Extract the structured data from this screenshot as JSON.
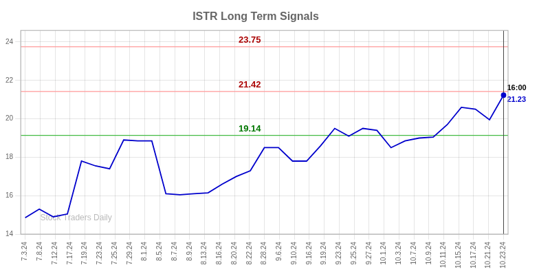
{
  "chart_data": {
    "type": "line",
    "title": "ISTR Long Term Signals",
    "watermark": "Stock Traders Daily",
    "x": [
      0,
      0.941176,
      1.882353,
      2.823529,
      3.764706,
      4.705882,
      5.647059,
      6.588235,
      7.529412,
      8.470588,
      9.411765,
      10.352941,
      11.294118,
      12.235294,
      13.176471,
      14.117647,
      15.058824,
      16,
      16.941176,
      17.882353,
      18.823529,
      19.764706,
      20.705882,
      21.647059,
      22.588235,
      23.529412,
      24.470588,
      25.411765,
      26.352941,
      27.294118,
      28.235294,
      29.176471,
      30.117647,
      31.058824,
      32
    ],
    "values": [
      14.85,
      15.3,
      14.9,
      15.05,
      17.8,
      17.55,
      17.4,
      18.9,
      18.85,
      18.85,
      16.1,
      16.05,
      16.1,
      16.15,
      16.6,
      17.0,
      17.3,
      18.5,
      18.5,
      17.8,
      17.8,
      18.6,
      19.5,
      19.1,
      19.5,
      19.4,
      18.5,
      18.85,
      19.0,
      19.05,
      19.7,
      20.6,
      20.5,
      19.95,
      21.23
    ],
    "color": "#0000cc",
    "xlim": [
      -0.3,
      32.3
    ],
    "xticks": [
      {
        "value": 0,
        "label": "7.3.24"
      },
      {
        "value": 1,
        "label": "7.8.24"
      },
      {
        "value": 2,
        "label": "7.12.24"
      },
      {
        "value": 3,
        "label": "7.17.24"
      },
      {
        "value": 4,
        "label": "7.19.24"
      },
      {
        "value": 5,
        "label": "7.23.24"
      },
      {
        "value": 6,
        "label": "7.25.24"
      },
      {
        "value": 7,
        "label": "7.29.24"
      },
      {
        "value": 8,
        "label": "8.1.24"
      },
      {
        "value": 9,
        "label": "8.5.24"
      },
      {
        "value": 10,
        "label": "8.7.24"
      },
      {
        "value": 11,
        "label": "8.9.24"
      },
      {
        "value": 12,
        "label": "8.13.24"
      },
      {
        "value": 13,
        "label": "8.16.24"
      },
      {
        "value": 14,
        "label": "8.20.24"
      },
      {
        "value": 15,
        "label": "8.22.24"
      },
      {
        "value": 16,
        "label": "8.28.24"
      },
      {
        "value": 17,
        "label": "9.6.24"
      },
      {
        "value": 18,
        "label": "9.10.24"
      },
      {
        "value": 19,
        "label": "9.16.24"
      },
      {
        "value": 20,
        "label": "9.19.24"
      },
      {
        "value": 21,
        "label": "9.23.24"
      },
      {
        "value": 22,
        "label": "9.25.24"
      },
      {
        "value": 23,
        "label": "9.27.24"
      },
      {
        "value": 24,
        "label": "10.1.24"
      },
      {
        "value": 25,
        "label": "10.3.24"
      },
      {
        "value": 26,
        "label": "10.7.24"
      },
      {
        "value": 27,
        "label": "10.9.24"
      },
      {
        "value": 28,
        "label": "10.11.24"
      },
      {
        "value": 29,
        "label": "10.15.24"
      },
      {
        "value": 30,
        "label": "10.17.24"
      },
      {
        "value": 31,
        "label": "10.21.24"
      },
      {
        "value": 32,
        "label": "10.23.24"
      }
    ],
    "ylim": [
      14,
      24.6
    ],
    "yticks": [
      14,
      16,
      18,
      20,
      22,
      24
    ],
    "grid": true,
    "annotations": [
      {
        "text": "23.75",
        "y": 23.75,
        "color": "#aa0000",
        "line_color": "#ff9999"
      },
      {
        "text": "21.42",
        "y": 21.42,
        "color": "#aa0000",
        "line_color": "#ff9999"
      },
      {
        "text": "19.14",
        "y": 19.14,
        "color": "#007700",
        "line_color": "#44bb44"
      }
    ],
    "last_point": {
      "time": "16:00",
      "price": 21.23,
      "color": "#0000cc"
    }
  }
}
